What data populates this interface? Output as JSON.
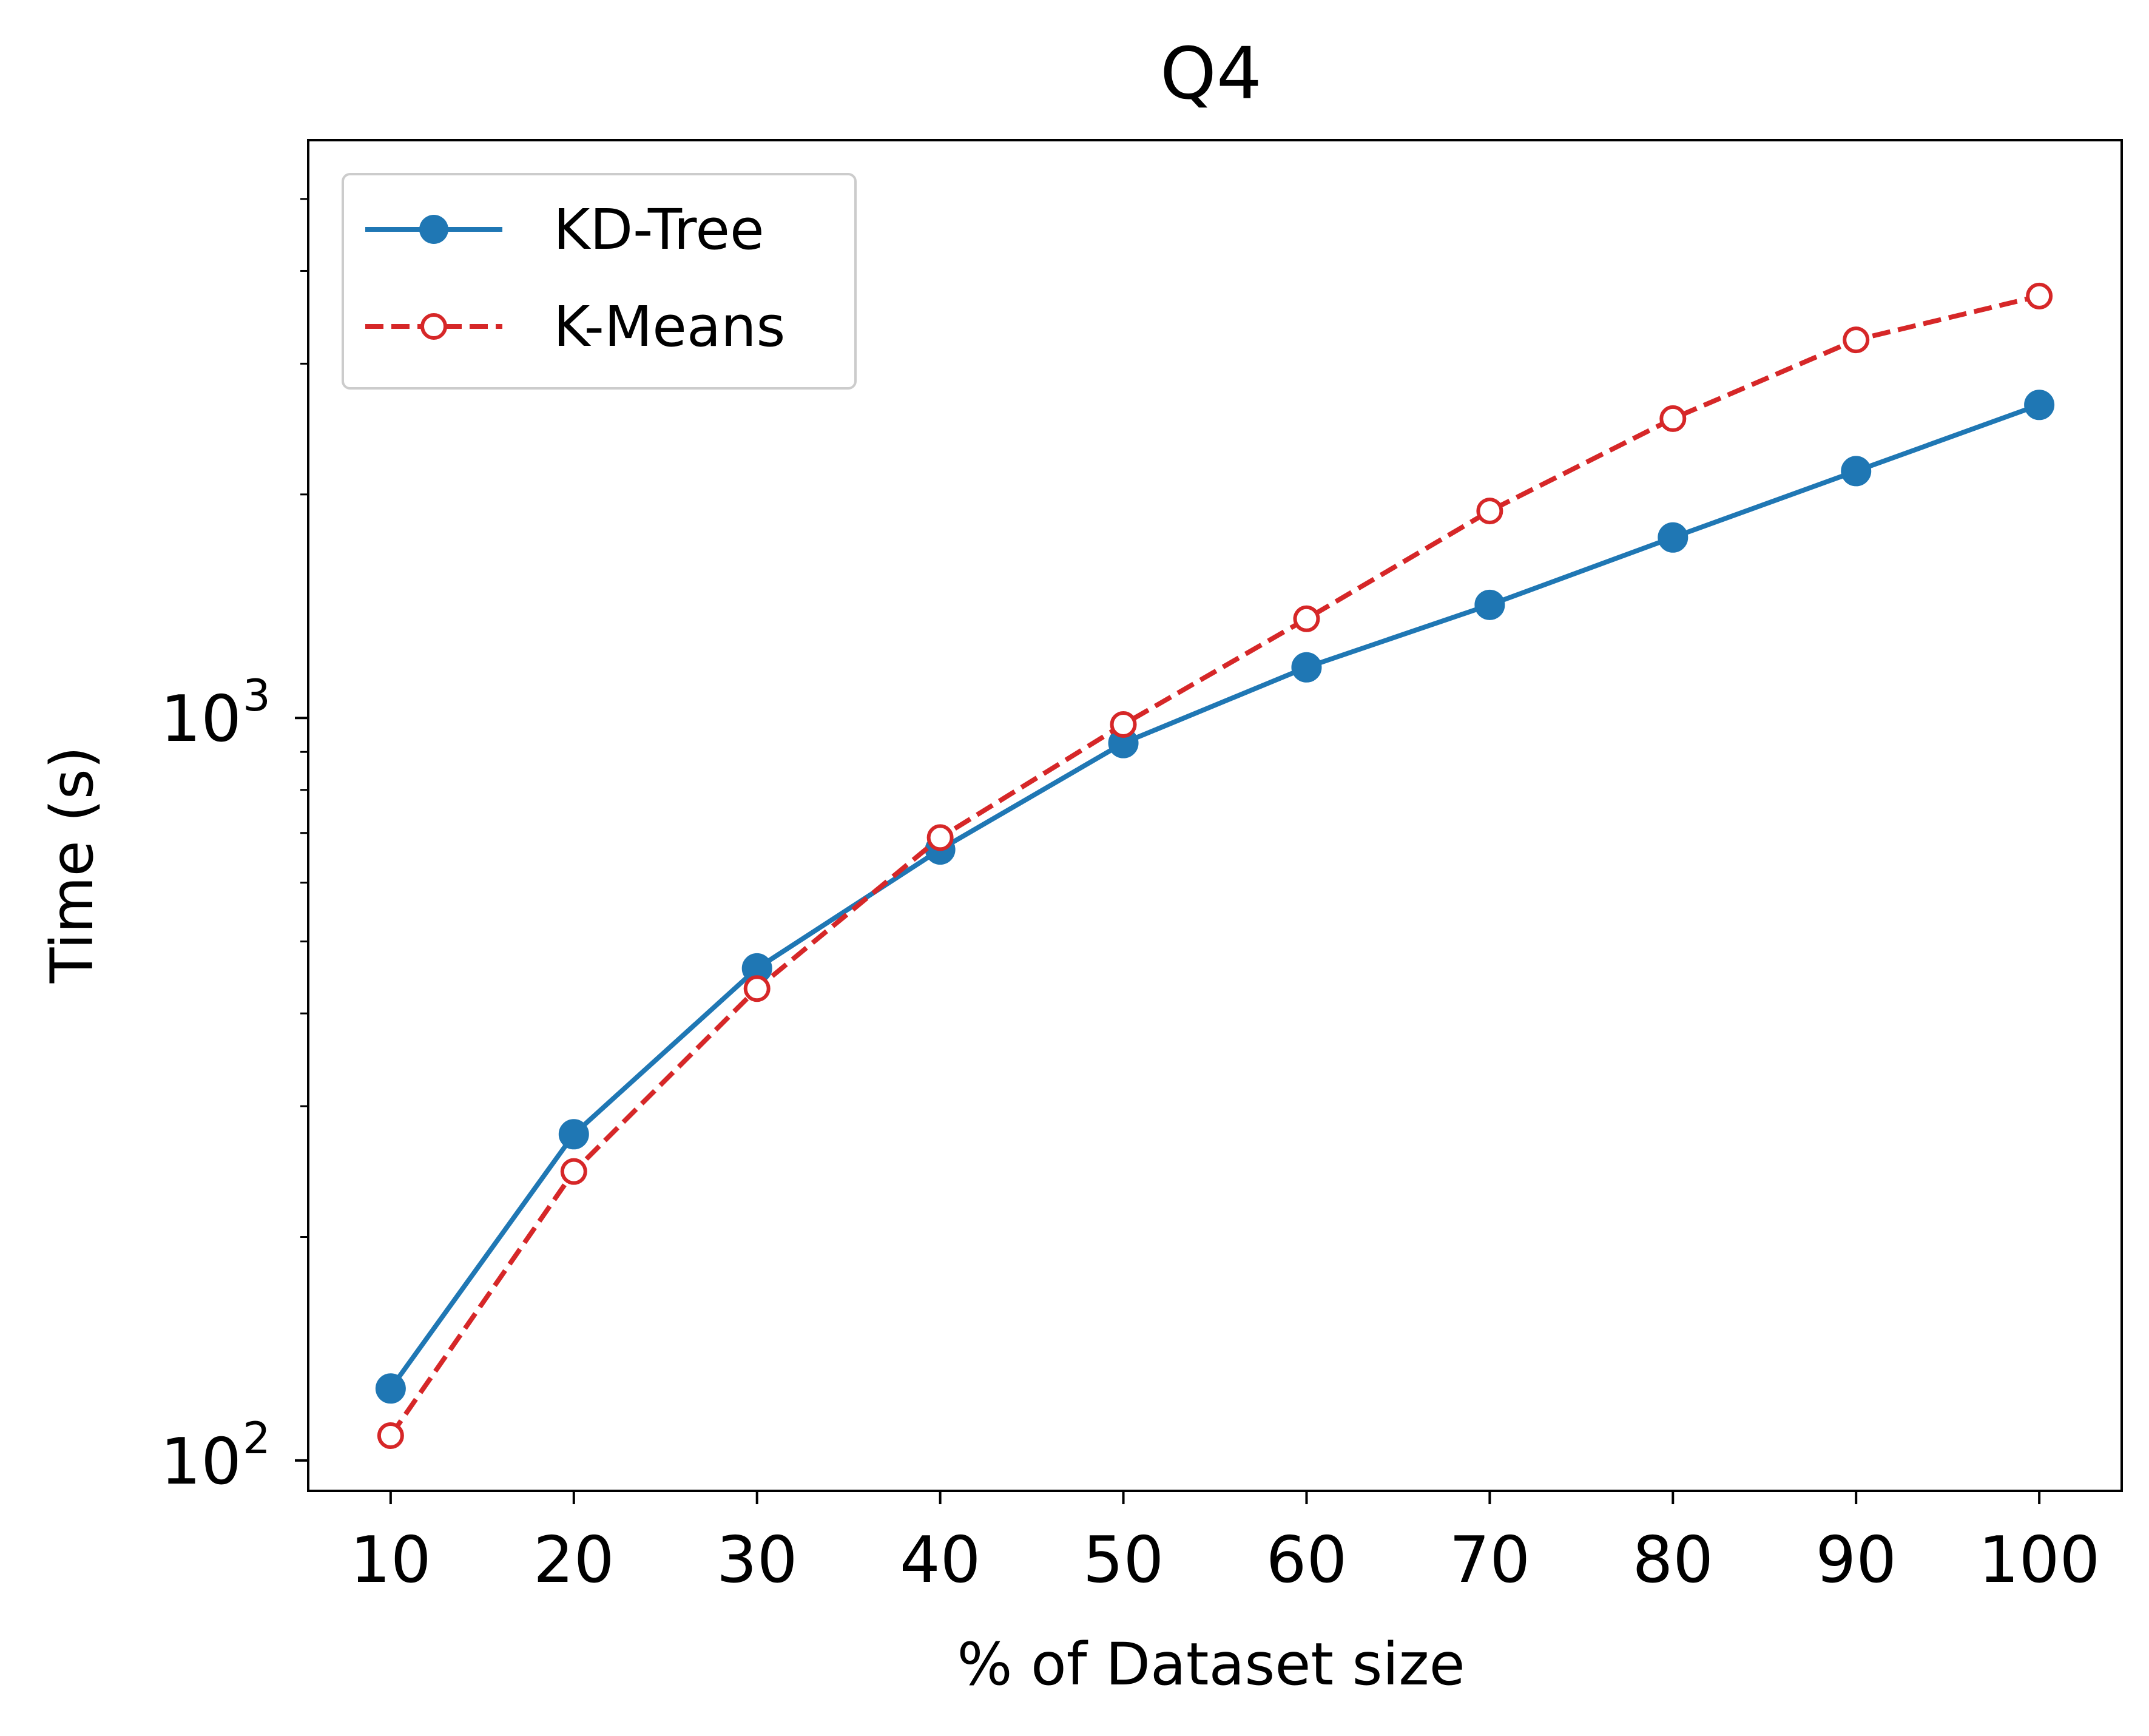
{
  "chart_data": {
    "type": "line",
    "title": "Q4",
    "xlabel": "% of Dataset size",
    "ylabel": "Time (s)",
    "x": [
      10,
      20,
      30,
      40,
      50,
      60,
      70,
      80,
      90,
      100
    ],
    "xticks": [
      10,
      20,
      30,
      40,
      50,
      60,
      70,
      80,
      90,
      100
    ],
    "xticklabels": [
      "10",
      "20",
      "30",
      "40",
      "50",
      "60",
      "70",
      "80",
      "90",
      "100"
    ],
    "xlim": [
      5.5,
      104.5
    ],
    "yscale": "log",
    "ylim": [
      91,
      6000
    ],
    "yticks": [
      100,
      1000
    ],
    "yticklabels": [
      {
        "base": "10",
        "exp": "2"
      },
      {
        "base": "10",
        "exp": "3"
      }
    ],
    "yminor_ticks": [
      200,
      300,
      400,
      500,
      600,
      700,
      800,
      900,
      2000,
      3000,
      4000,
      5000
    ],
    "grid": false,
    "legend_position": "upper left",
    "series": [
      {
        "name": "KD-Tree",
        "color": "#1f77b4",
        "line_style": "solid",
        "marker": "filled-circle",
        "values": [
          125,
          275,
          460,
          665,
          925,
          1170,
          1420,
          1750,
          2150,
          2640
        ]
      },
      {
        "name": "K-Means",
        "color": "#d62728",
        "line_style": "dashed",
        "marker": "open-circle",
        "values": [
          108,
          245,
          432,
          690,
          980,
          1360,
          1900,
          2530,
          3230,
          3700
        ]
      }
    ]
  }
}
